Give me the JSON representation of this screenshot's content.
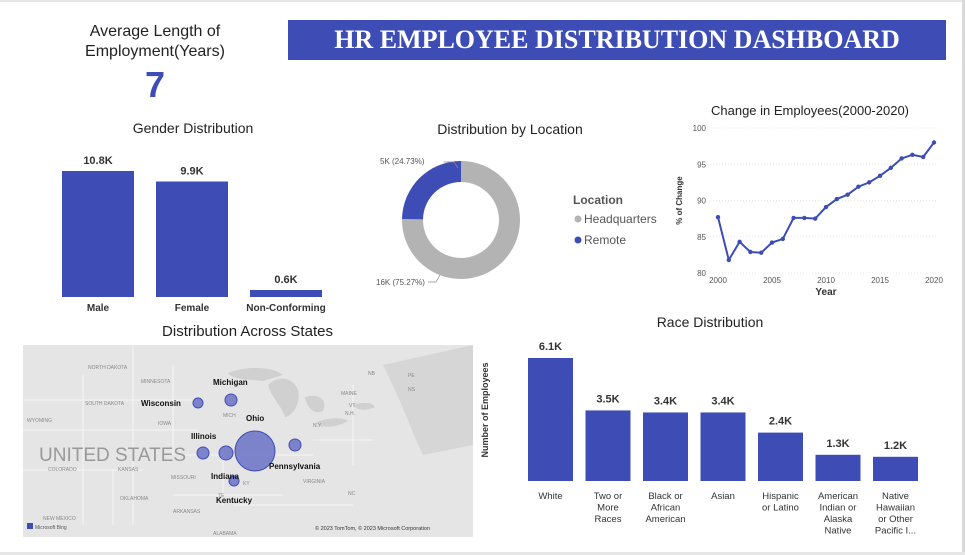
{
  "kpi": {
    "title_line1": "Average Length of",
    "title_line2": "Employment(Years)",
    "value": "7"
  },
  "banner": {
    "title": "HR EMPLOYEE DISTRIBUTION DASHBOARD"
  },
  "gender": {
    "title": "Gender Distribution",
    "chart_data": {
      "type": "bar",
      "categories": [
        "Male",
        "Female",
        "Non-Conforming"
      ],
      "values": [
        10.8,
        9.9,
        0.6
      ],
      "labels": [
        "10.8K",
        "9.9K",
        "0.6K"
      ],
      "ylim": [
        0,
        12
      ]
    }
  },
  "location": {
    "title": "Distribution by Location",
    "legend_title": "Location",
    "chart_data": {
      "type": "pie",
      "slices": [
        {
          "name": "Headquarters",
          "value": 75.27,
          "label": "16K (75.27%)",
          "color": "#b3b3b3"
        },
        {
          "name": "Remote",
          "value": 24.73,
          "label": "5K (24.73%)",
          "color": "#3d4db5"
        }
      ]
    }
  },
  "change": {
    "title": "Change in Employees(2000-2020)",
    "xlabel": "Year",
    "ylabel": "% of Change",
    "chart_data": {
      "type": "line",
      "x": [
        2000,
        2001,
        2002,
        2003,
        2004,
        2005,
        2006,
        2007,
        2008,
        2009,
        2010,
        2011,
        2012,
        2013,
        2014,
        2015,
        2016,
        2017,
        2018,
        2019,
        2020
      ],
      "y": [
        87.7,
        81.8,
        84.3,
        82.9,
        82.8,
        84.2,
        84.7,
        87.6,
        87.6,
        87.5,
        89.1,
        90.2,
        90.8,
        91.9,
        92.5,
        93.4,
        94.5,
        95.8,
        96.3,
        96.0,
        98.0
      ],
      "xticks": [
        2000,
        2005,
        2010,
        2015,
        2020
      ],
      "yticks": [
        80,
        85,
        90,
        95,
        100
      ],
      "ylim": [
        80,
        100
      ]
    }
  },
  "states": {
    "title": "Distribution Across States",
    "country": "UNITED STATES",
    "attribution": "© 2023 TomTom, © 2023 Microsoft Corporation",
    "bing": "Microsoft Bing",
    "labels": [
      "Michigan",
      "Wisconsin",
      "Ohio",
      "Illinois",
      "Pennsylvania",
      "Indiana",
      "Kentucky"
    ],
    "map_labels": [
      "NORTH DAKOTA",
      "MINNESOTA",
      "SOUTH DAKOTA",
      "WYOMING",
      "IOWA",
      "COLORADO",
      "KANSAS",
      "MISSOURI",
      "OKLAHOMA",
      "NEW MEXICO",
      "ARKANSAS",
      "ALABAMA",
      "VIRGINIA",
      "NC",
      "N.Y.",
      "N.H.",
      "MAINE",
      "NB",
      "PE",
      "NS",
      "VT",
      "MICH",
      "TE",
      "KY"
    ]
  },
  "race": {
    "title": "Race Distribution",
    "ylabel": "Number of Employees",
    "chart_data": {
      "type": "bar",
      "categories": [
        "White",
        "Two or More Races",
        "Black or African American",
        "Asian",
        "Hispanic or Latino",
        "American Indian or Alaska Native",
        "Native Hawaiian or Other Pacific I..."
      ],
      "category_lines": [
        [
          "White"
        ],
        [
          "Two or",
          "More",
          "Races"
        ],
        [
          "Black or",
          "African",
          "American"
        ],
        [
          "Asian"
        ],
        [
          "Hispanic",
          "or Latino"
        ],
        [
          "American",
          "Indian or",
          "Alaska",
          "Native"
        ],
        [
          "Native",
          "Hawaiian",
          "or Other",
          "Pacific I..."
        ]
      ],
      "values": [
        6.1,
        3.5,
        3.4,
        3.4,
        2.4,
        1.3,
        1.2
      ],
      "labels": [
        "6.1K",
        "3.5K",
        "3.4K",
        "3.4K",
        "2.4K",
        "1.3K",
        "1.2K"
      ],
      "ylim": [
        0,
        6.1
      ]
    }
  },
  "colors": {
    "accent": "#3d4db5",
    "grey": "#b3b3b3"
  }
}
